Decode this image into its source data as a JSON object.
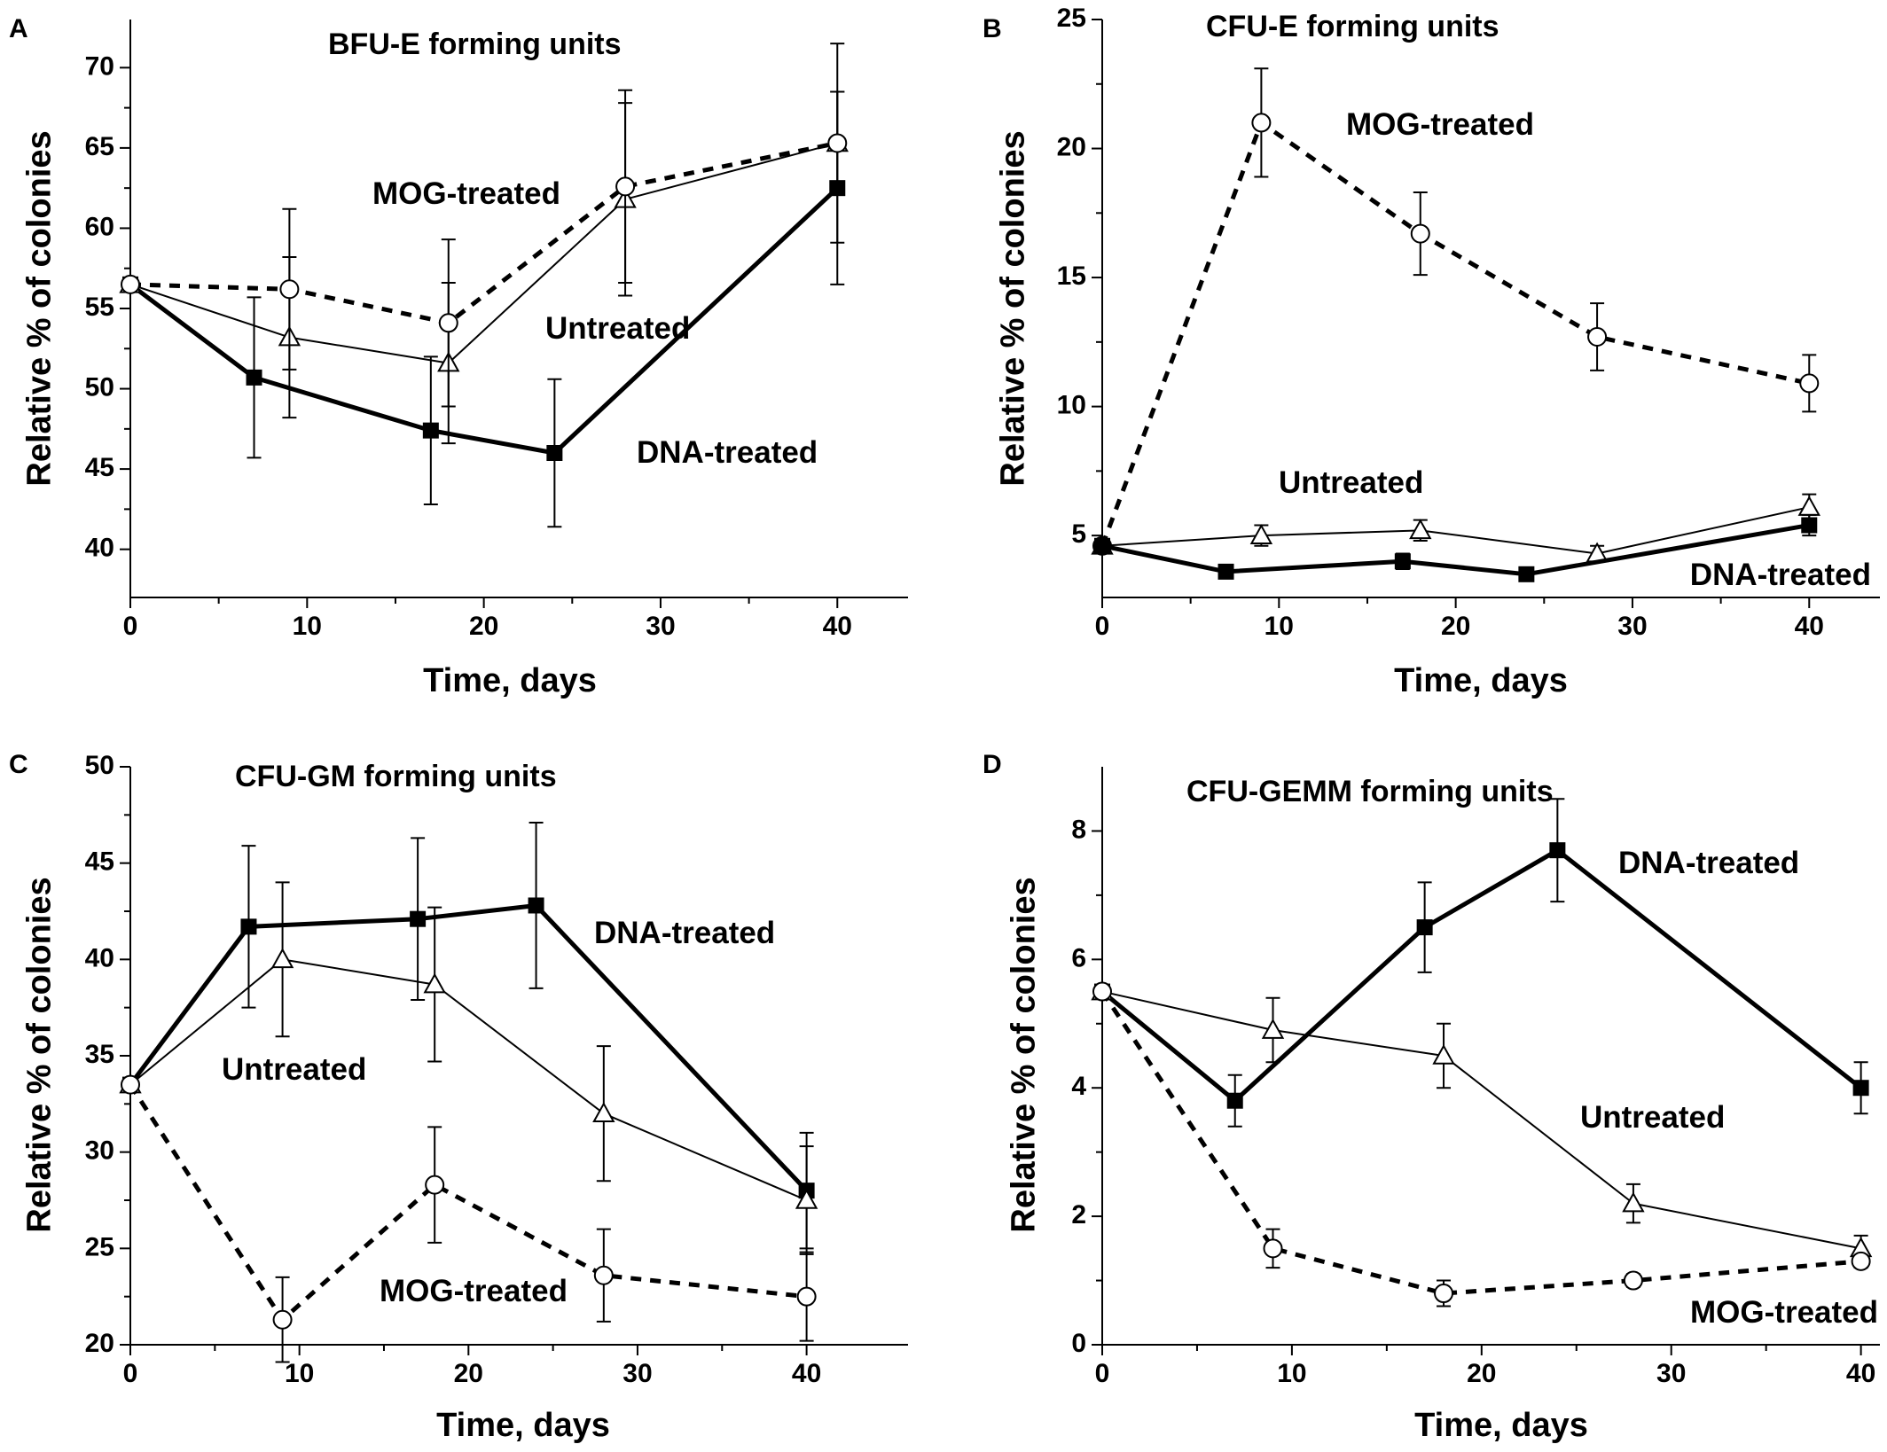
{
  "chart_data": [
    {
      "panel": "A",
      "type": "line",
      "title": "BFU-E forming units",
      "xlabel": "Time, days",
      "ylabel": "Relative  % of colonies",
      "xlim": [
        0,
        44
      ],
      "ylim": [
        37,
        73
      ],
      "xticks": [
        0,
        10,
        20,
        30,
        40
      ],
      "yticks": [
        40,
        45,
        50,
        55,
        60,
        65,
        70
      ],
      "grid": false,
      "series": [
        {
          "name": "DNA-treated",
          "style": "solid-thick",
          "marker": "filled-square",
          "x": [
            0,
            7,
            17,
            24,
            40
          ],
          "y": [
            56.5,
            50.7,
            47.4,
            46.0,
            62.5
          ],
          "err": [
            0,
            5.0,
            4.6,
            4.6,
            6.0
          ]
        },
        {
          "name": "Untreated",
          "style": "solid-thin",
          "marker": "open-triangle",
          "x": [
            0,
            9,
            18,
            28,
            40
          ],
          "y": [
            56.5,
            53.2,
            51.6,
            61.8,
            65.3
          ],
          "err": [
            0,
            5.0,
            5.0,
            6.0,
            6.2
          ]
        },
        {
          "name": "MOG-treated",
          "style": "dotted-thick",
          "marker": "open-circle",
          "x": [
            0,
            9,
            18,
            28,
            40
          ],
          "y": [
            56.5,
            56.2,
            54.1,
            62.6,
            65.3
          ],
          "err": [
            0,
            5.0,
            5.2,
            6.0,
            3.2
          ]
        }
      ]
    },
    {
      "panel": "B",
      "type": "line",
      "title": "CFU-E forming units",
      "xlabel": "Time, days",
      "ylabel": "Relative  % of colonies",
      "xlim": [
        0,
        44
      ],
      "ylim": [
        2.6,
        25
      ],
      "xticks": [
        0,
        10,
        20,
        30,
        40
      ],
      "yticks": [
        5,
        10,
        15,
        20,
        25
      ],
      "grid": false,
      "series": [
        {
          "name": "MOG-treated",
          "style": "dotted-thick",
          "marker": "open-circle",
          "x": [
            0,
            9,
            18,
            28,
            40
          ],
          "y": [
            4.6,
            21.0,
            16.7,
            12.7,
            10.9
          ],
          "err": [
            0,
            2.1,
            1.6,
            1.3,
            1.1
          ]
        },
        {
          "name": "Untreated",
          "style": "solid-thin",
          "marker": "open-triangle",
          "x": [
            0,
            9,
            18,
            28,
            40
          ],
          "y": [
            4.6,
            5.0,
            5.2,
            4.3,
            6.1
          ],
          "err": [
            0,
            0.4,
            0.4,
            0.3,
            0.5
          ]
        },
        {
          "name": "DNA-treated",
          "style": "solid-thick",
          "marker": "filled-square",
          "x": [
            0,
            7,
            17,
            24,
            40
          ],
          "y": [
            4.6,
            3.6,
            4.0,
            3.5,
            5.4
          ],
          "err": [
            0,
            0.2,
            0.3,
            0.2,
            0.4
          ]
        }
      ]
    },
    {
      "panel": "C",
      "type": "line",
      "title": "CFU-GM forming units",
      "xlabel": "Time, days",
      "ylabel": "Relative  % of colonies",
      "xlim": [
        0,
        46
      ],
      "ylim": [
        20,
        50
      ],
      "xticks": [
        0,
        10,
        20,
        30,
        40
      ],
      "yticks": [
        20,
        25,
        30,
        35,
        40,
        45,
        50
      ],
      "grid": false,
      "series": [
        {
          "name": "DNA-treated",
          "style": "solid-thick",
          "marker": "filled-square",
          "x": [
            0,
            7,
            17,
            24,
            40
          ],
          "y": [
            33.5,
            41.7,
            42.1,
            42.8,
            28.0
          ],
          "err": [
            0,
            4.2,
            4.2,
            4.3,
            3.0
          ]
        },
        {
          "name": "Untreated",
          "style": "solid-thin",
          "marker": "open-triangle",
          "x": [
            0,
            9,
            18,
            28,
            40
          ],
          "y": [
            33.5,
            40.0,
            38.7,
            32.0,
            27.5
          ],
          "err": [
            0,
            4.0,
            4.0,
            3.5,
            2.8
          ]
        },
        {
          "name": "MOG-treated",
          "style": "dotted-thick",
          "marker": "open-circle",
          "x": [
            0,
            9,
            18,
            28,
            40
          ],
          "y": [
            33.5,
            21.3,
            28.3,
            23.6,
            22.5
          ],
          "err": [
            0,
            2.2,
            3.0,
            2.4,
            2.3
          ]
        }
      ]
    },
    {
      "panel": "D",
      "type": "line",
      "title": "CFU-GEMM forming units",
      "xlabel": "Time, days",
      "ylabel": "Relative  % of colonies",
      "xlim": [
        0,
        41
      ],
      "ylim": [
        0,
        9
      ],
      "xticks": [
        0,
        10,
        20,
        30,
        40
      ],
      "yticks": [
        0,
        2,
        4,
        6,
        8
      ],
      "grid": false,
      "series": [
        {
          "name": "DNA-treated",
          "style": "solid-thick",
          "marker": "filled-square",
          "x": [
            0,
            7,
            17,
            24,
            40
          ],
          "y": [
            5.5,
            3.8,
            6.5,
            7.7,
            4.0
          ],
          "err": [
            0,
            0.4,
            0.7,
            0.8,
            0.4
          ]
        },
        {
          "name": "Untreated",
          "style": "solid-thin",
          "marker": "open-triangle",
          "x": [
            0,
            9,
            18,
            28,
            40
          ],
          "y": [
            5.5,
            4.9,
            4.5,
            2.2,
            1.5
          ],
          "err": [
            0,
            0.5,
            0.5,
            0.3,
            0.2
          ]
        },
        {
          "name": "MOG-treated",
          "style": "dotted-thick",
          "marker": "open-circle",
          "x": [
            0,
            9,
            18,
            28,
            40
          ],
          "y": [
            5.5,
            1.5,
            0.8,
            1.0,
            1.3
          ],
          "err": [
            0,
            0.3,
            0.2,
            0.1,
            0.1
          ]
        }
      ]
    }
  ]
}
